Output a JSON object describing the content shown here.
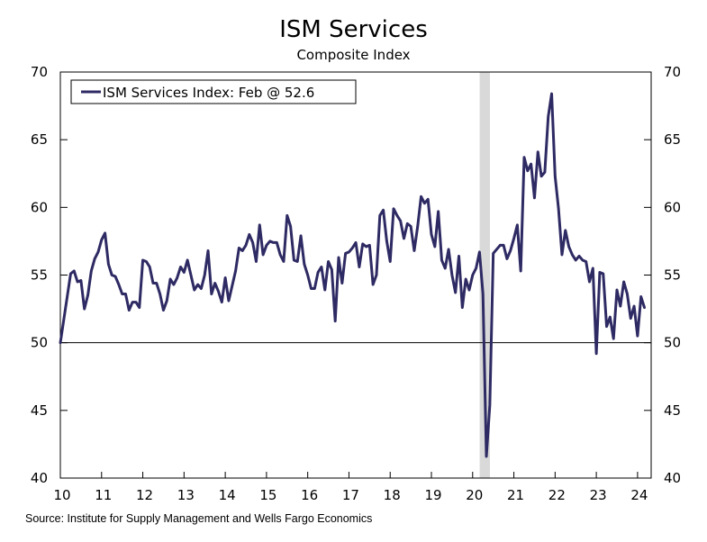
{
  "title": "ISM Services",
  "subtitle": "Composite Index",
  "source": "Source: Institute for Supply Management and Wells Fargo Economics",
  "colors": {
    "series": "#2e2a63",
    "recession": "#d9d9d9",
    "axis": "#000000"
  },
  "chart_data": {
    "type": "line",
    "title": "ISM Services",
    "subtitle": "Composite Index",
    "xlim": [
      2010.0,
      2024.33
    ],
    "ylim": [
      40,
      70
    ],
    "yticks": [
      40,
      45,
      50,
      55,
      60,
      65,
      70
    ],
    "xticks": [
      {
        "value": 2010.0,
        "label": "10"
      },
      {
        "value": 2011.0,
        "label": "11"
      },
      {
        "value": 2012.0,
        "label": "12"
      },
      {
        "value": 2013.0,
        "label": "13"
      },
      {
        "value": 2014.0,
        "label": "14"
      },
      {
        "value": 2015.0,
        "label": "15"
      },
      {
        "value": 2016.0,
        "label": "16"
      },
      {
        "value": 2017.0,
        "label": "17"
      },
      {
        "value": 2018.0,
        "label": "18"
      },
      {
        "value": 2019.0,
        "label": "19"
      },
      {
        "value": 2020.0,
        "label": "20"
      },
      {
        "value": 2021.0,
        "label": "21"
      },
      {
        "value": 2022.0,
        "label": "22"
      },
      {
        "value": 2023.0,
        "label": "23"
      },
      {
        "value": 2024.0,
        "label": "24"
      }
    ],
    "reference_line": 50,
    "recession_shading": [
      [
        2020.17,
        2020.42
      ]
    ],
    "legend": {
      "label": "ISM Services Index: Feb @ 52.6",
      "position": "top-left"
    },
    "series": [
      {
        "name": "ISM Services Index: Feb @ 52.6",
        "start": "2010-01",
        "frequency": "monthly",
        "values": [
          50.0,
          51.7,
          53.4,
          55.1,
          55.3,
          54.5,
          54.6,
          52.5,
          53.5,
          55.3,
          56.2,
          56.7,
          57.6,
          58.1,
          55.8,
          55.0,
          54.9,
          54.3,
          53.6,
          53.6,
          52.4,
          53.0,
          53.0,
          52.6,
          56.1,
          56.0,
          55.6,
          54.4,
          54.4,
          53.6,
          52.4,
          53.1,
          54.7,
          54.3,
          54.8,
          55.6,
          55.2,
          56.1,
          55.0,
          53.9,
          54.3,
          54.0,
          55.0,
          56.8,
          53.6,
          54.4,
          53.8,
          53.0,
          54.8,
          53.1,
          54.2,
          55.3,
          57.0,
          56.8,
          57.2,
          58.0,
          57.4,
          56.0,
          58.7,
          56.5,
          57.2,
          57.5,
          57.4,
          57.4,
          56.5,
          56.0,
          59.4,
          58.6,
          56.1,
          56.0,
          57.9,
          55.8,
          55.0,
          54.0,
          54.0,
          55.2,
          55.6,
          53.9,
          56.0,
          55.4,
          51.6,
          56.3,
          54.4,
          56.6,
          56.7,
          57.0,
          57.4,
          55.6,
          57.3,
          57.1,
          57.2,
          54.3,
          55.0,
          59.4,
          59.8,
          57.5,
          56.0,
          59.9,
          59.4,
          59.0,
          57.7,
          58.8,
          58.6,
          56.8,
          58.6,
          60.8,
          60.3,
          60.6,
          58.0,
          57.1,
          59.7,
          56.1,
          55.5,
          56.9,
          55.0,
          53.7,
          56.4,
          52.6,
          54.7,
          53.9,
          55.0,
          55.5,
          56.7,
          53.6,
          41.6,
          45.4,
          56.6,
          56.9,
          57.2,
          57.2,
          56.2,
          56.8,
          57.7,
          58.7,
          55.3,
          63.7,
          62.7,
          63.2,
          60.7,
          64.1,
          62.3,
          62.6,
          66.7,
          68.4,
          62.3,
          59.9,
          56.5,
          58.3,
          57.1,
          56.5,
          56.1,
          56.4,
          56.1,
          56.0,
          54.5,
          55.5,
          49.2,
          55.2,
          55.1,
          51.2,
          51.9,
          50.3,
          53.9,
          52.7,
          54.5,
          53.6,
          51.8,
          52.7,
          50.5,
          53.4,
          52.6
        ]
      }
    ]
  }
}
